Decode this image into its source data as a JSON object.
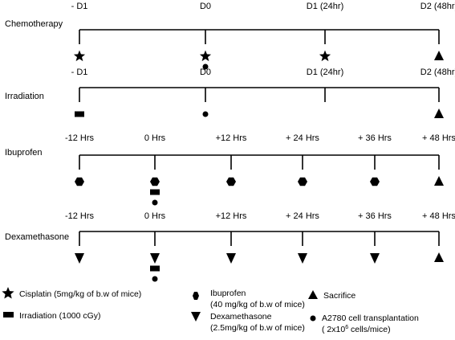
{
  "timelines": [
    {
      "label": "Chemotherapy",
      "times": [
        "- D1",
        "D0",
        "D1 (24hr)",
        "D2 (48hr)"
      ],
      "markers": [
        [
          "star"
        ],
        [
          "star",
          "circle"
        ],
        [
          "star"
        ],
        [
          "triangle"
        ]
      ]
    },
    {
      "label": "Irradiation",
      "times": [
        "- D1",
        "D0",
        "D1 (24hr)",
        "D2 (48hr)"
      ],
      "markers": [
        [
          "rect"
        ],
        [
          "circle"
        ],
        [],
        [
          "triangle"
        ]
      ]
    },
    {
      "label": "Ibuprofen",
      "times": [
        "-12 Hrs",
        "0 Hrs",
        "+12 Hrs",
        "+ 24 Hrs",
        "+ 36 Hrs",
        "+ 48 Hrs"
      ],
      "markers": [
        [
          "hexagon"
        ],
        [
          "hexagon",
          "rect",
          "circle"
        ],
        [
          "hexagon"
        ],
        [
          "hexagon"
        ],
        [
          "hexagon"
        ],
        [
          "triangle"
        ]
      ]
    },
    {
      "label": "Dexamethasone",
      "times": [
        "-12 Hrs",
        "0 Hrs",
        "+12 Hrs",
        "+ 24 Hrs",
        "+ 36 Hrs",
        "+ 48 Hrs"
      ],
      "markers": [
        [
          "invtriangle"
        ],
        [
          "invtriangle",
          "rect",
          "circle"
        ],
        [
          "invtriangle"
        ],
        [
          "invtriangle"
        ],
        [
          "invtriangle"
        ],
        [
          "triangle"
        ]
      ]
    }
  ],
  "legend": {
    "cisplatin": "Cisplatin (5mg/kg of b.w of  mice)",
    "irradiation": "Irradiation (1000 cGy)",
    "ibuprofen_1": "Ibuprofen",
    "ibuprofen_2": "(40 mg/kg of b.w of mice)",
    "dexamethasone_1": "Dexamethasone",
    "dexamethasone_2": "(2.5mg/kg of b.w of mice)",
    "sacrifice": "Sacrifice",
    "transplant_1": "A2780 cell transplantation",
    "transplant_2": "( 2x10",
    "transplant_sup": "6",
    "transplant_3": " cells/mice)"
  }
}
